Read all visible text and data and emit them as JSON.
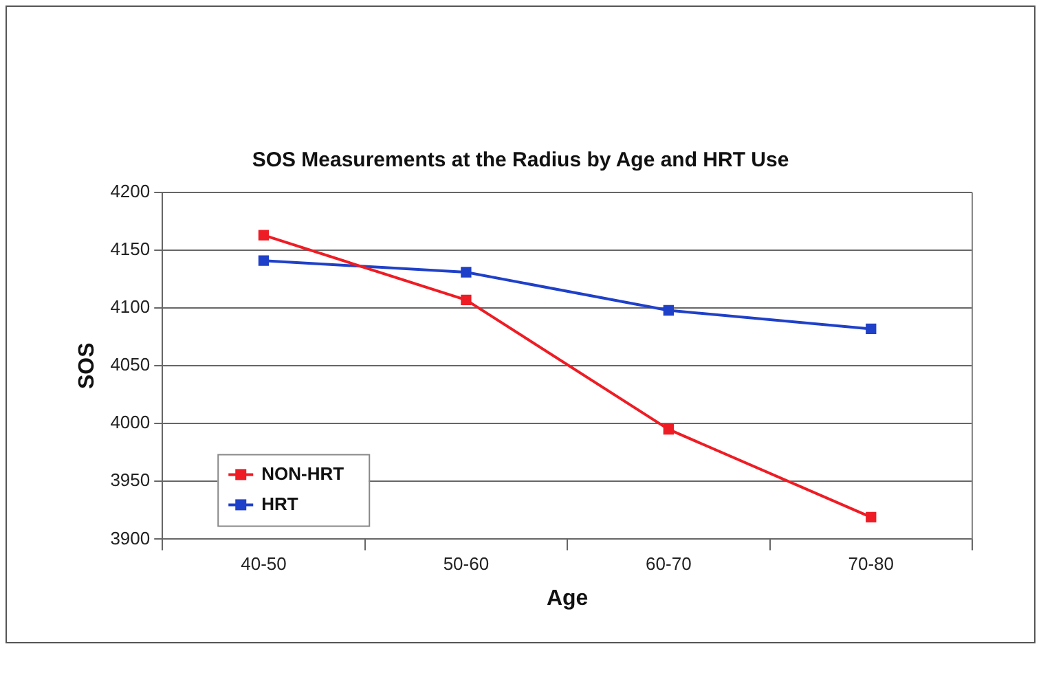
{
  "chart_data": {
    "type": "line",
    "title": "SOS Measurements at the Radius by Age and HRT Use",
    "xlabel": "Age",
    "ylabel": "SOS",
    "categories": [
      "40-50",
      "50-60",
      "60-70",
      "70-80"
    ],
    "series": [
      {
        "name": "NON-HRT",
        "color": "#ee1c24",
        "values": [
          4163,
          4107,
          3995,
          3919
        ]
      },
      {
        "name": "HRT",
        "color": "#1f40c8",
        "values": [
          4141,
          4131,
          4098,
          4082
        ]
      }
    ],
    "ylim": [
      3900,
      4200
    ],
    "yticks": [
      3900,
      3950,
      4000,
      4050,
      4100,
      4150,
      4200
    ],
    "grid": "y",
    "legend": "bottom left",
    "marker": "square",
    "line_style": "solid"
  }
}
